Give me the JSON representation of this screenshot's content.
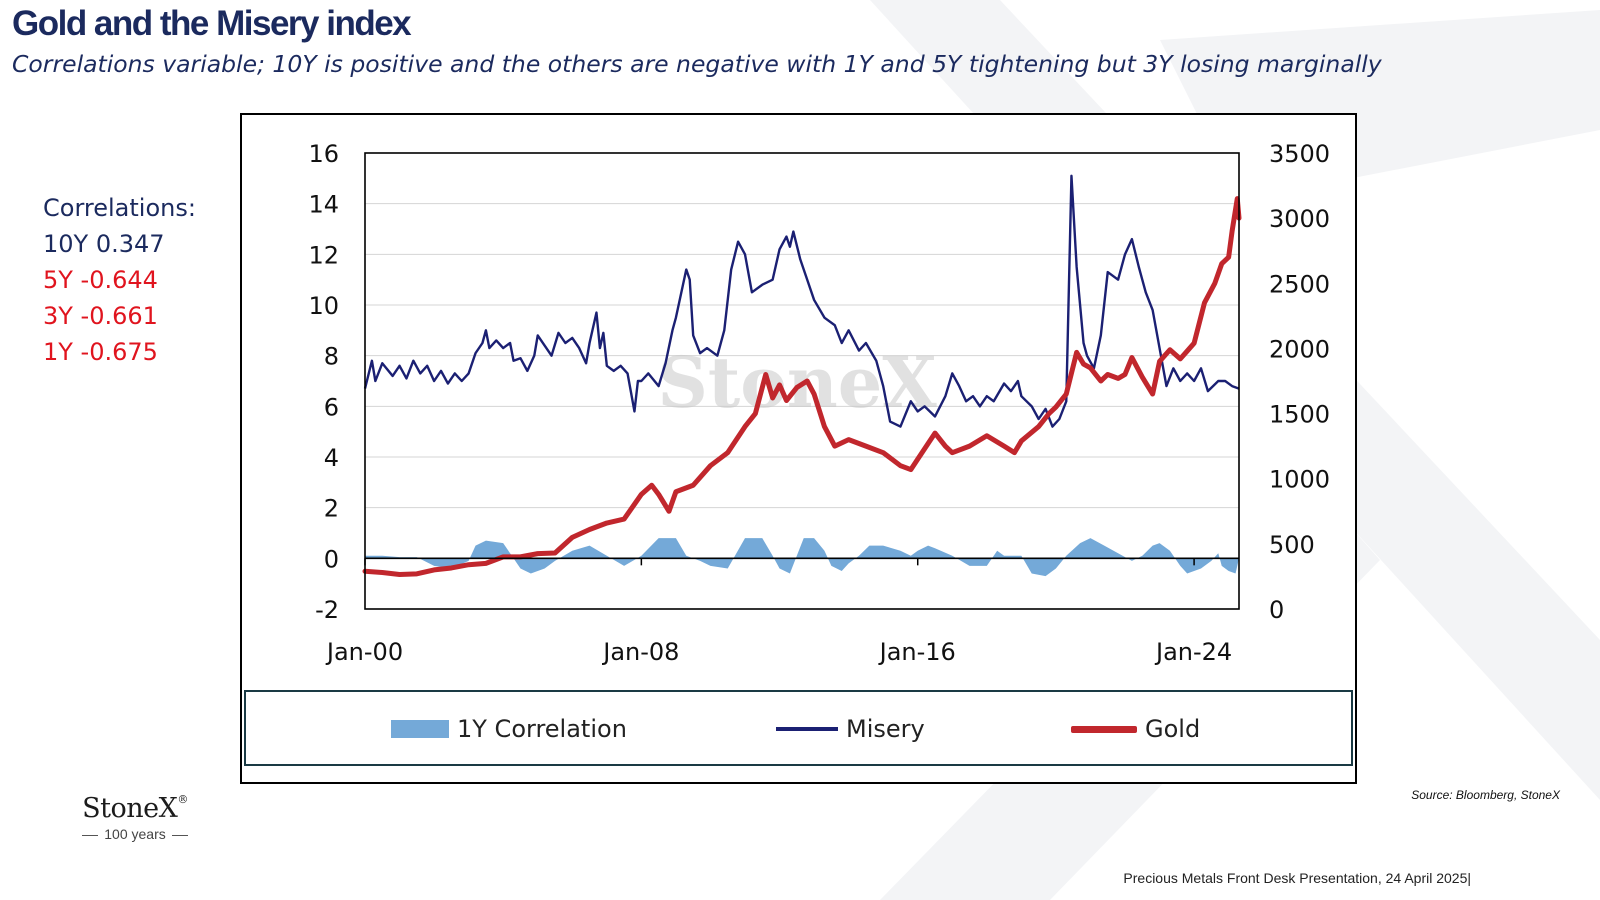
{
  "title": "Gold and the Misery index",
  "subtitle": "Correlations variable; 10Y is positive and the others are negative with 1Y and 5Y tightening but 3Y losing marginally",
  "correlations": {
    "heading": "Correlations:",
    "ten_year": "10Y 0.347",
    "five_year": "5Y -0.644",
    "three_year": "3Y -0.661",
    "one_year": "1Y -0.675"
  },
  "watermark": "StoneX",
  "source": "Source: Bloomberg, StoneX",
  "brand": {
    "name": "StoneX",
    "reg": "®",
    "tagline": "100 years"
  },
  "footer": "Precious Metals Front Desk Presentation, 24 April 2025|",
  "colors": {
    "navy": "#1b2073",
    "gold": "#c1272d",
    "corr": "#74a9d8",
    "title": "#1b2a5e",
    "negative": "#e0141e"
  },
  "chart_data": {
    "type": "line",
    "title": "Gold and the Misery index",
    "x_range": [
      2000.0,
      2025.3
    ],
    "xticks": [
      {
        "x": 2000.0,
        "label": "Jan-00"
      },
      {
        "x": 2008.0,
        "label": "Jan-08"
      },
      {
        "x": 2016.0,
        "label": "Jan-16"
      },
      {
        "x": 2024.0,
        "label": "Jan-24"
      }
    ],
    "y_left": {
      "min": -2,
      "max": 16,
      "ticks": [
        -2,
        0,
        2,
        4,
        6,
        8,
        10,
        12,
        14,
        16
      ]
    },
    "y_right": {
      "min": 0,
      "max": 3500,
      "ticks": [
        0,
        500,
        1000,
        1500,
        2000,
        2500,
        3000,
        3500
      ]
    },
    "grid": true,
    "legend": [
      "1Y Correlation",
      "Misery",
      "Gold"
    ],
    "series": [
      {
        "name": "1Y Correlation",
        "kind": "area",
        "axis": "left",
        "points": [
          [
            2000.0,
            0.1
          ],
          [
            2000.5,
            0.1
          ],
          [
            2001.0,
            0.05
          ],
          [
            2001.5,
            0.05
          ],
          [
            2002.0,
            -0.3
          ],
          [
            2002.5,
            -0.4
          ],
          [
            2003.0,
            -0.1
          ],
          [
            2003.2,
            0.5
          ],
          [
            2003.5,
            0.7
          ],
          [
            2004.0,
            0.6
          ],
          [
            2004.2,
            0.2
          ],
          [
            2004.5,
            -0.4
          ],
          [
            2004.8,
            -0.6
          ],
          [
            2005.2,
            -0.4
          ],
          [
            2005.5,
            -0.1
          ],
          [
            2006.0,
            0.3
          ],
          [
            2006.5,
            0.5
          ],
          [
            2007.0,
            0.1
          ],
          [
            2007.5,
            -0.3
          ],
          [
            2008.0,
            0.1
          ],
          [
            2008.5,
            0.8
          ],
          [
            2009.0,
            0.8
          ],
          [
            2009.3,
            0.1
          ],
          [
            2009.7,
            -0.1
          ],
          [
            2010.0,
            -0.3
          ],
          [
            2010.5,
            -0.4
          ],
          [
            2011.0,
            0.8
          ],
          [
            2011.5,
            0.8
          ],
          [
            2011.8,
            0.1
          ],
          [
            2012.0,
            -0.4
          ],
          [
            2012.3,
            -0.6
          ],
          [
            2012.5,
            0.1
          ],
          [
            2012.7,
            0.8
          ],
          [
            2013.0,
            0.8
          ],
          [
            2013.3,
            0.3
          ],
          [
            2013.5,
            -0.3
          ],
          [
            2013.8,
            -0.5
          ],
          [
            2014.0,
            -0.2
          ],
          [
            2014.3,
            0.1
          ],
          [
            2014.6,
            0.5
          ],
          [
            2015.0,
            0.5
          ],
          [
            2015.5,
            0.3
          ],
          [
            2015.8,
            0.1
          ],
          [
            2016.0,
            0.3
          ],
          [
            2016.3,
            0.5
          ],
          [
            2016.5,
            0.4
          ],
          [
            2017.0,
            0.1
          ],
          [
            2017.5,
            -0.3
          ],
          [
            2018.0,
            -0.3
          ],
          [
            2018.3,
            0.3
          ],
          [
            2018.5,
            0.1
          ],
          [
            2019.0,
            0.1
          ],
          [
            2019.3,
            -0.6
          ],
          [
            2019.7,
            -0.7
          ],
          [
            2020.0,
            -0.4
          ],
          [
            2020.3,
            0.1
          ],
          [
            2020.7,
            0.6
          ],
          [
            2021.0,
            0.8
          ],
          [
            2021.4,
            0.5
          ],
          [
            2021.8,
            0.2
          ],
          [
            2022.2,
            -0.1
          ],
          [
            2022.5,
            0.1
          ],
          [
            2022.8,
            0.5
          ],
          [
            2023.0,
            0.6
          ],
          [
            2023.3,
            0.3
          ],
          [
            2023.6,
            -0.3
          ],
          [
            2023.8,
            -0.6
          ],
          [
            2024.2,
            -0.4
          ],
          [
            2024.5,
            -0.1
          ],
          [
            2024.7,
            0.2
          ],
          [
            2024.8,
            -0.3
          ],
          [
            2025.0,
            -0.5
          ],
          [
            2025.2,
            -0.6
          ],
          [
            2025.3,
            0
          ]
        ]
      },
      {
        "name": "Misery",
        "kind": "line",
        "axis": "left",
        "points": [
          [
            2000.0,
            6.7
          ],
          [
            2000.2,
            7.8
          ],
          [
            2000.3,
            7.0
          ],
          [
            2000.5,
            7.7
          ],
          [
            2000.8,
            7.2
          ],
          [
            2001.0,
            7.6
          ],
          [
            2001.2,
            7.1
          ],
          [
            2001.4,
            7.8
          ],
          [
            2001.6,
            7.3
          ],
          [
            2001.8,
            7.6
          ],
          [
            2002.0,
            7.0
          ],
          [
            2002.2,
            7.4
          ],
          [
            2002.4,
            6.9
          ],
          [
            2002.6,
            7.3
          ],
          [
            2002.8,
            7.0
          ],
          [
            2003.0,
            7.3
          ],
          [
            2003.2,
            8.1
          ],
          [
            2003.4,
            8.5
          ],
          [
            2003.5,
            9.0
          ],
          [
            2003.6,
            8.3
          ],
          [
            2003.8,
            8.6
          ],
          [
            2004.0,
            8.3
          ],
          [
            2004.2,
            8.5
          ],
          [
            2004.3,
            7.8
          ],
          [
            2004.5,
            7.9
          ],
          [
            2004.7,
            7.4
          ],
          [
            2004.9,
            8.0
          ],
          [
            2005.0,
            8.8
          ],
          [
            2005.2,
            8.4
          ],
          [
            2005.4,
            8.0
          ],
          [
            2005.6,
            8.9
          ],
          [
            2005.8,
            8.5
          ],
          [
            2006.0,
            8.7
          ],
          [
            2006.2,
            8.3
          ],
          [
            2006.4,
            7.7
          ],
          [
            2006.5,
            8.5
          ],
          [
            2006.7,
            9.7
          ],
          [
            2006.8,
            8.3
          ],
          [
            2006.9,
            8.9
          ],
          [
            2007.0,
            7.6
          ],
          [
            2007.2,
            7.4
          ],
          [
            2007.4,
            7.6
          ],
          [
            2007.6,
            7.3
          ],
          [
            2007.8,
            5.8
          ],
          [
            2007.9,
            7.0
          ],
          [
            2008.0,
            7.0
          ],
          [
            2008.2,
            7.3
          ],
          [
            2008.5,
            6.8
          ],
          [
            2008.7,
            7.7
          ],
          [
            2008.9,
            9.0
          ],
          [
            2009.0,
            9.5
          ],
          [
            2009.3,
            11.4
          ],
          [
            2009.4,
            11.0
          ],
          [
            2009.5,
            8.8
          ],
          [
            2009.7,
            8.1
          ],
          [
            2009.9,
            8.3
          ],
          [
            2010.2,
            8.0
          ],
          [
            2010.4,
            9.0
          ],
          [
            2010.6,
            11.4
          ],
          [
            2010.8,
            12.5
          ],
          [
            2011.0,
            12.0
          ],
          [
            2011.2,
            10.5
          ],
          [
            2011.5,
            10.8
          ],
          [
            2011.8,
            11.0
          ],
          [
            2012.0,
            12.2
          ],
          [
            2012.2,
            12.7
          ],
          [
            2012.3,
            12.3
          ],
          [
            2012.4,
            12.9
          ],
          [
            2012.6,
            11.8
          ],
          [
            2012.8,
            11.0
          ],
          [
            2013.0,
            10.2
          ],
          [
            2013.3,
            9.5
          ],
          [
            2013.6,
            9.2
          ],
          [
            2013.8,
            8.5
          ],
          [
            2014.0,
            9.0
          ],
          [
            2014.3,
            8.2
          ],
          [
            2014.5,
            8.5
          ],
          [
            2014.8,
            7.8
          ],
          [
            2015.0,
            6.8
          ],
          [
            2015.2,
            5.4
          ],
          [
            2015.5,
            5.2
          ],
          [
            2015.8,
            6.2
          ],
          [
            2016.0,
            5.8
          ],
          [
            2016.2,
            6.0
          ],
          [
            2016.5,
            5.6
          ],
          [
            2016.8,
            6.4
          ],
          [
            2017.0,
            7.3
          ],
          [
            2017.2,
            6.8
          ],
          [
            2017.4,
            6.2
          ],
          [
            2017.6,
            6.4
          ],
          [
            2017.8,
            6.0
          ],
          [
            2018.0,
            6.4
          ],
          [
            2018.2,
            6.2
          ],
          [
            2018.5,
            6.9
          ],
          [
            2018.7,
            6.6
          ],
          [
            2018.9,
            7.0
          ],
          [
            2019.0,
            6.4
          ],
          [
            2019.3,
            6.0
          ],
          [
            2019.5,
            5.5
          ],
          [
            2019.7,
            5.9
          ],
          [
            2019.9,
            5.2
          ],
          [
            2020.1,
            5.5
          ],
          [
            2020.3,
            6.2
          ],
          [
            2020.45,
            15.1
          ],
          [
            2020.6,
            11.5
          ],
          [
            2020.8,
            8.5
          ],
          [
            2020.9,
            8.0
          ],
          [
            2021.1,
            7.5
          ],
          [
            2021.3,
            8.8
          ],
          [
            2021.5,
            11.3
          ],
          [
            2021.8,
            11.0
          ],
          [
            2022.0,
            12.0
          ],
          [
            2022.2,
            12.6
          ],
          [
            2022.4,
            11.5
          ],
          [
            2022.6,
            10.5
          ],
          [
            2022.8,
            9.8
          ],
          [
            2023.0,
            8.3
          ],
          [
            2023.2,
            6.8
          ],
          [
            2023.4,
            7.5
          ],
          [
            2023.6,
            7.0
          ],
          [
            2023.8,
            7.3
          ],
          [
            2024.0,
            7.0
          ],
          [
            2024.2,
            7.5
          ],
          [
            2024.4,
            6.6
          ],
          [
            2024.7,
            7.0
          ],
          [
            2024.9,
            7.0
          ],
          [
            2025.1,
            6.8
          ],
          [
            2025.3,
            6.7
          ]
        ]
      },
      {
        "name": "Gold",
        "kind": "line",
        "axis": "right",
        "points": [
          [
            2000.0,
            290
          ],
          [
            2000.5,
            280
          ],
          [
            2001.0,
            265
          ],
          [
            2001.5,
            270
          ],
          [
            2002.0,
            300
          ],
          [
            2002.5,
            315
          ],
          [
            2003.0,
            340
          ],
          [
            2003.5,
            350
          ],
          [
            2004.0,
            400
          ],
          [
            2004.5,
            400
          ],
          [
            2005.0,
            425
          ],
          [
            2005.5,
            430
          ],
          [
            2006.0,
            550
          ],
          [
            2006.5,
            610
          ],
          [
            2007.0,
            660
          ],
          [
            2007.5,
            690
          ],
          [
            2008.0,
            880
          ],
          [
            2008.3,
            950
          ],
          [
            2008.5,
            880
          ],
          [
            2008.8,
            750
          ],
          [
            2009.0,
            900
          ],
          [
            2009.5,
            950
          ],
          [
            2010.0,
            1100
          ],
          [
            2010.5,
            1200
          ],
          [
            2011.0,
            1400
          ],
          [
            2011.3,
            1500
          ],
          [
            2011.6,
            1800
          ],
          [
            2011.8,
            1620
          ],
          [
            2012.0,
            1720
          ],
          [
            2012.2,
            1600
          ],
          [
            2012.5,
            1700
          ],
          [
            2012.8,
            1750
          ],
          [
            2013.0,
            1650
          ],
          [
            2013.3,
            1400
          ],
          [
            2013.6,
            1250
          ],
          [
            2014.0,
            1300
          ],
          [
            2014.5,
            1250
          ],
          [
            2015.0,
            1200
          ],
          [
            2015.5,
            1100
          ],
          [
            2015.8,
            1070
          ],
          [
            2016.0,
            1150
          ],
          [
            2016.5,
            1350
          ],
          [
            2016.8,
            1250
          ],
          [
            2017.0,
            1200
          ],
          [
            2017.5,
            1250
          ],
          [
            2018.0,
            1330
          ],
          [
            2018.5,
            1250
          ],
          [
            2018.8,
            1200
          ],
          [
            2019.0,
            1290
          ],
          [
            2019.5,
            1400
          ],
          [
            2019.8,
            1500
          ],
          [
            2020.0,
            1550
          ],
          [
            2020.3,
            1650
          ],
          [
            2020.6,
            1970
          ],
          [
            2020.8,
            1880
          ],
          [
            2021.0,
            1850
          ],
          [
            2021.3,
            1750
          ],
          [
            2021.5,
            1800
          ],
          [
            2021.8,
            1770
          ],
          [
            2022.0,
            1800
          ],
          [
            2022.2,
            1930
          ],
          [
            2022.5,
            1780
          ],
          [
            2022.8,
            1650
          ],
          [
            2023.0,
            1900
          ],
          [
            2023.3,
            1990
          ],
          [
            2023.6,
            1920
          ],
          [
            2023.8,
            1980
          ],
          [
            2024.0,
            2040
          ],
          [
            2024.3,
            2350
          ],
          [
            2024.6,
            2500
          ],
          [
            2024.8,
            2650
          ],
          [
            2025.0,
            2700
          ],
          [
            2025.1,
            2900
          ],
          [
            2025.25,
            3150
          ],
          [
            2025.3,
            3000
          ]
        ]
      }
    ]
  }
}
